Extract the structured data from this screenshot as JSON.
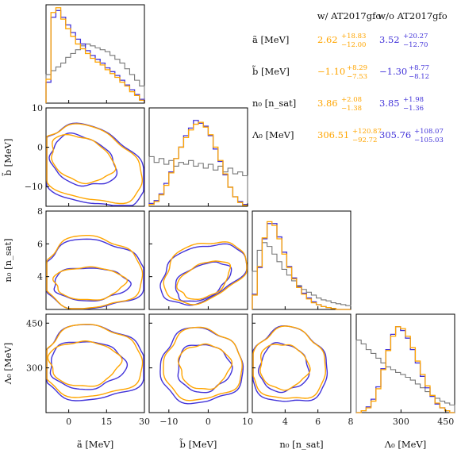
{
  "chart_data": {
    "type": "corner",
    "parameters": [
      {
        "key": "a",
        "axis_label": "ã [MeV]",
        "ticks": [
          "0",
          "15",
          "30"
        ],
        "tick_values": [
          0,
          15,
          30
        ],
        "range": [
          -9,
          30
        ]
      },
      {
        "key": "b",
        "axis_label": "b̃ [MeV]",
        "ticks": [
          "−10",
          "0",
          "10"
        ],
        "tick_values": [
          -10,
          0,
          10
        ],
        "range": [
          -15,
          10
        ]
      },
      {
        "key": "n0",
        "axis_label": "n₀ [n_sat]",
        "ticks": [
          "4",
          "6",
          "8"
        ],
        "tick_values": [
          4,
          6,
          8
        ],
        "range": [
          2,
          8
        ]
      },
      {
        "key": "L0",
        "axis_label": "Λ₀ [MeV]",
        "ticks": [
          "300",
          "450"
        ],
        "tick_values": [
          300,
          450
        ],
        "range": [
          150,
          480
        ]
      }
    ],
    "series": [
      {
        "name": "w/ AT2017gfo",
        "color": "#ffa500"
      },
      {
        "name": "w/o AT2017gfo",
        "color": "#4233d9"
      },
      {
        "name": "",
        "color": "#777777"
      }
    ],
    "table": {
      "headers": [
        "w/ AT2017gfo",
        "w/o AT2017gfo"
      ],
      "rows": [
        {
          "label": "ã [MeV]",
          "with": {
            "median": "2.62",
            "plus": "+18.83",
            "minus": "−12.00"
          },
          "without": {
            "median": "3.52",
            "plus": "+20.27",
            "minus": "−12.70"
          }
        },
        {
          "label": "b̃ [MeV]",
          "with": {
            "median": "−1.10",
            "plus": "+8.29",
            "minus": "−7.53"
          },
          "without": {
            "median": "−1.30",
            "plus": "+8.77",
            "minus": "−8.12"
          }
        },
        {
          "label": "n₀ [n_sat]",
          "with": {
            "median": "3.86",
            "plus": "+2.08",
            "minus": "−1.38"
          },
          "without": {
            "median": "3.85",
            "plus": "+1.98",
            "minus": "−1.36"
          }
        },
        {
          "label": "Λ₀ [MeV]",
          "with": {
            "median": "306.51",
            "plus": "+120.87",
            "minus": "−92.72"
          },
          "without": {
            "median": "305.76",
            "plus": "+108.07",
            "minus": "−105.03"
          }
        }
      ]
    },
    "histograms": {
      "bins": 20,
      "a": {
        "with": [
          0.25,
          0.95,
          1.0,
          0.88,
          0.78,
          0.7,
          0.62,
          0.57,
          0.52,
          0.47,
          0.43,
          0.4,
          0.35,
          0.31,
          0.27,
          0.22,
          0.18,
          0.12,
          0.08,
          0.03
        ],
        "without": [
          0.22,
          0.9,
          0.97,
          0.9,
          0.82,
          0.74,
          0.67,
          0.62,
          0.55,
          0.5,
          0.46,
          0.42,
          0.37,
          0.33,
          0.29,
          0.24,
          0.19,
          0.14,
          0.09,
          0.04
        ],
        "prior": [
          0.3,
          0.34,
          0.38,
          0.42,
          0.48,
          0.52,
          0.56,
          0.6,
          0.62,
          0.6,
          0.58,
          0.56,
          0.54,
          0.5,
          0.46,
          0.42,
          0.36,
          0.3,
          0.24,
          0.18
        ]
      },
      "b": {
        "with": [
          0.02,
          0.05,
          0.12,
          0.22,
          0.35,
          0.5,
          0.62,
          0.72,
          0.8,
          0.86,
          0.88,
          0.83,
          0.75,
          0.62,
          0.48,
          0.34,
          0.2,
          0.1,
          0.04,
          0.01
        ],
        "without": [
          0.03,
          0.06,
          0.13,
          0.24,
          0.36,
          0.5,
          0.62,
          0.74,
          0.82,
          0.9,
          0.87,
          0.84,
          0.74,
          0.6,
          0.47,
          0.33,
          0.2,
          0.1,
          0.05,
          0.02
        ],
        "prior": [
          0.52,
          0.46,
          0.5,
          0.44,
          0.48,
          0.42,
          0.46,
          0.44,
          0.48,
          0.42,
          0.45,
          0.4,
          0.44,
          0.38,
          0.42,
          0.36,
          0.4,
          0.34,
          0.36,
          0.32
        ]
      },
      "n0": {
        "with": [
          0.15,
          0.45,
          0.75,
          0.92,
          0.88,
          0.74,
          0.58,
          0.44,
          0.32,
          0.23,
          0.16,
          0.11,
          0.07,
          0.05,
          0.03,
          0.02,
          0.01,
          0.0,
          0.0,
          0.0
        ],
        "without": [
          0.16,
          0.44,
          0.74,
          0.9,
          0.9,
          0.76,
          0.6,
          0.45,
          0.33,
          0.24,
          0.17,
          0.12,
          0.08,
          0.05,
          0.03,
          0.02,
          0.01,
          0.0,
          0.0,
          0.0
        ],
        "prior": [
          0.4,
          0.62,
          0.7,
          0.66,
          0.58,
          0.5,
          0.42,
          0.36,
          0.3,
          0.25,
          0.21,
          0.18,
          0.15,
          0.12,
          0.1,
          0.09,
          0.07,
          0.06,
          0.05,
          0.04
        ]
      },
      "L0": {
        "with": [
          0.0,
          0.02,
          0.05,
          0.12,
          0.25,
          0.45,
          0.65,
          0.8,
          0.9,
          0.88,
          0.8,
          0.68,
          0.54,
          0.4,
          0.28,
          0.18,
          0.1,
          0.05,
          0.02,
          0.0
        ],
        "without": [
          0.0,
          0.02,
          0.06,
          0.14,
          0.27,
          0.46,
          0.66,
          0.82,
          0.9,
          0.86,
          0.78,
          0.66,
          0.52,
          0.38,
          0.26,
          0.17,
          0.09,
          0.05,
          0.02,
          0.0
        ],
        "prior": [
          0.76,
          0.72,
          0.66,
          0.62,
          0.57,
          0.52,
          0.48,
          0.45,
          0.42,
          0.4,
          0.37,
          0.34,
          0.3,
          0.26,
          0.22,
          0.18,
          0.15,
          0.12,
          0.1,
          0.08
        ]
      }
    },
    "contours": {
      "a-b": {
        "with": [
          {
            "cx": 5,
            "cy": -3,
            "rx": 13,
            "ry": 5.5,
            "rot": -0.4
          },
          {
            "cx": 8,
            "cy": -4.5,
            "rx": 22,
            "ry": 9,
            "rot": -0.35
          }
        ],
        "without": [
          {
            "cx": 5.5,
            "cy": -3.5,
            "rx": 13.5,
            "ry": 6,
            "rot": -0.4
          },
          {
            "cx": 8.5,
            "cy": -5,
            "rx": 23,
            "ry": 9.5,
            "rot": -0.35
          }
        ]
      },
      "a-n0": {
        "with": [
          {
            "cx": 8,
            "cy": 3.6,
            "rx": 14,
            "ry": 1.0,
            "rot": 0
          },
          {
            "cx": 9,
            "cy": 4.2,
            "rx": 20,
            "ry": 2.2,
            "rot": 0
          }
        ],
        "without": [
          {
            "cx": 8.5,
            "cy": 3.55,
            "rx": 15,
            "ry": 1.0,
            "rot": 0
          },
          {
            "cx": 9.5,
            "cy": 4.1,
            "rx": 21,
            "ry": 2.1,
            "rot": 0
          }
        ]
      },
      "b-n0": {
        "with": [
          {
            "cx": -1,
            "cy": 3.8,
            "rx": 7,
            "ry": 1.0,
            "rot": 0.45
          },
          {
            "cx": -1,
            "cy": 4.3,
            "rx": 11,
            "ry": 1.7,
            "rot": 0.4
          }
        ],
        "without": [
          {
            "cx": -1.5,
            "cy": 3.7,
            "rx": 7.5,
            "ry": 1.0,
            "rot": 0.45
          },
          {
            "cx": -1.5,
            "cy": 4.2,
            "rx": 11.5,
            "ry": 1.6,
            "rot": 0.4
          }
        ]
      },
      "a-L0": {
        "with": [
          {
            "cx": 6,
            "cy": 315,
            "rx": 14,
            "ry": 75,
            "rot": 0
          },
          {
            "cx": 9,
            "cy": 320,
            "rx": 20,
            "ry": 120,
            "rot": 0
          }
        ],
        "without": [
          {
            "cx": 7,
            "cy": 310,
            "rx": 15,
            "ry": 80,
            "rot": 0
          },
          {
            "cx": 9.5,
            "cy": 315,
            "rx": 21,
            "ry": 125,
            "rot": 0
          }
        ]
      },
      "b-L0": {
        "with": [
          {
            "cx": -1,
            "cy": 305,
            "rx": 6.5,
            "ry": 75,
            "rot": 0
          },
          {
            "cx": -1.5,
            "cy": 310,
            "rx": 10,
            "ry": 120,
            "rot": 0
          }
        ],
        "without": [
          {
            "cx": -1.2,
            "cy": 300,
            "rx": 6.8,
            "ry": 80,
            "rot": 0
          },
          {
            "cx": -1.8,
            "cy": 305,
            "rx": 10.5,
            "ry": 125,
            "rot": 0
          }
        ]
      },
      "n0-L0": {
        "with": [
          {
            "cx": 3.9,
            "cy": 305,
            "rx": 1.5,
            "ry": 75,
            "rot": -0.3
          },
          {
            "cx": 4.2,
            "cy": 310,
            "rx": 2.3,
            "ry": 120,
            "rot": -0.3
          }
        ],
        "without": [
          {
            "cx": 3.9,
            "cy": 300,
            "rx": 1.5,
            "ry": 80,
            "rot": -0.3
          },
          {
            "cx": 4.2,
            "cy": 305,
            "rx": 2.4,
            "ry": 125,
            "rot": -0.3
          }
        ]
      }
    }
  }
}
